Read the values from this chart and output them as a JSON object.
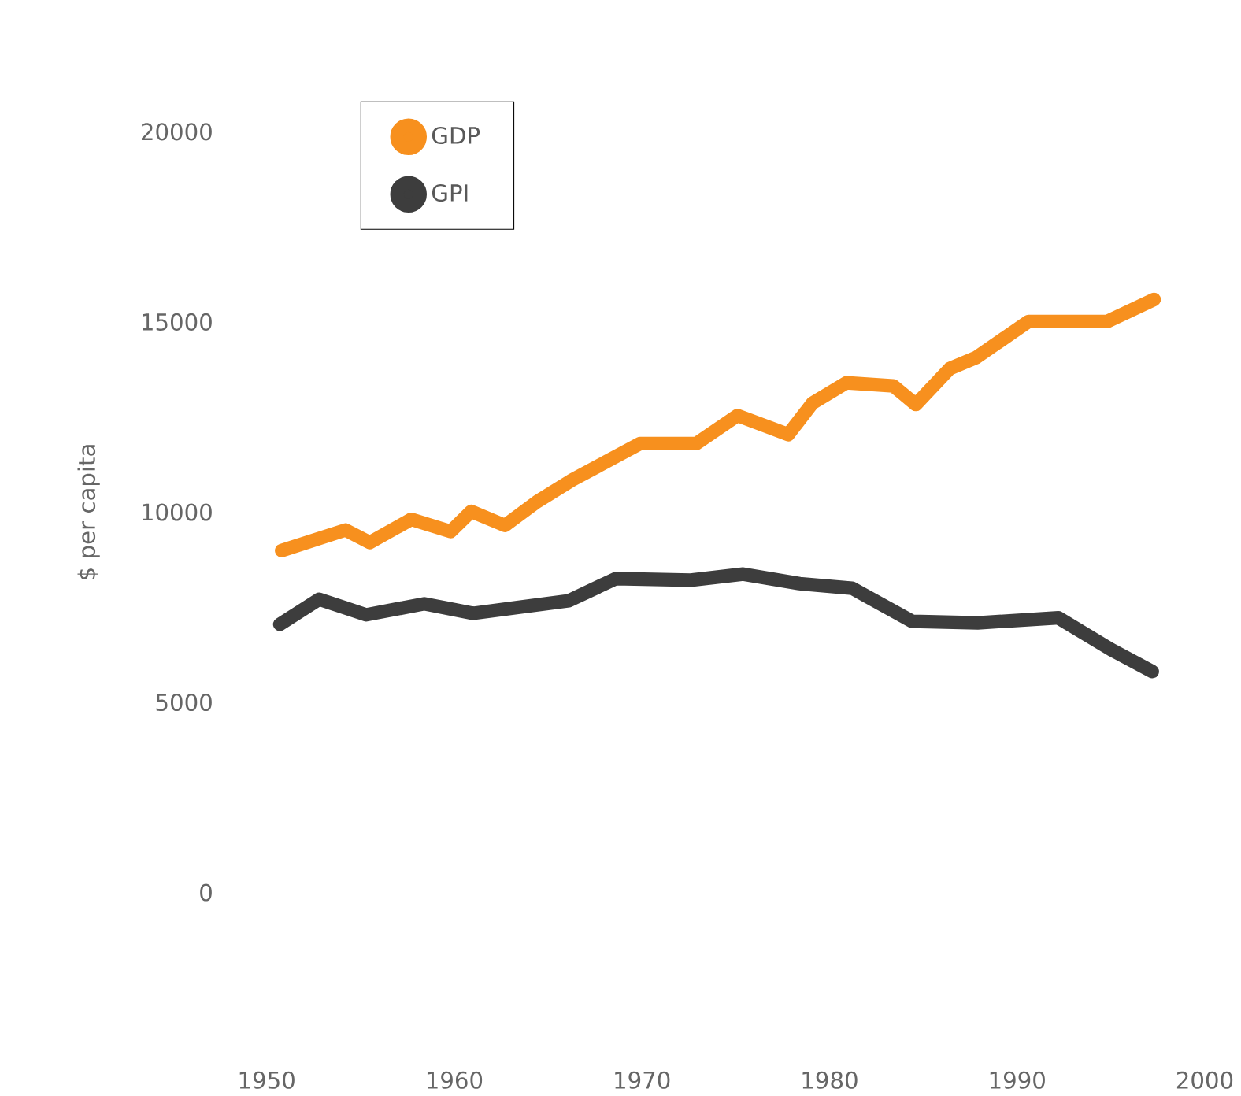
{
  "chart_data": {
    "type": "line",
    "ylabel": "$ per capita",
    "xlim": [
      1950,
      2000
    ],
    "xticks": [
      1950,
      1960,
      1970,
      1980,
      1990,
      2000
    ],
    "ylim": [
      0,
      20000
    ],
    "yticks": [
      0,
      5000,
      10000,
      15000,
      20000
    ],
    "legend": "top left",
    "marker": "none",
    "line_style": "solid",
    "grid": false,
    "series": [
      {
        "name": "GDP",
        "color": "#f7901e",
        "x": [
          1950.8,
          1954.2,
          1955.5,
          1957.7,
          1959.8,
          1960.9,
          1962.7,
          1964.4,
          1966.3,
          1969.9,
          1972.9,
          1975.1,
          1977.8,
          1979.1,
          1980.9,
          1983.4,
          1984.6,
          1986.4,
          1987.8,
          1990.6,
          1994.8,
          1997.3
        ],
        "values": [
          8990,
          9530,
          9200,
          9810,
          9490,
          10020,
          9650,
          10270,
          10850,
          11800,
          11800,
          12540,
          12040,
          12870,
          13400,
          13320,
          12830,
          13770,
          14060,
          15010,
          15010,
          15590
        ]
      },
      {
        "name": "GPI",
        "color": "#3d3d3d",
        "x": [
          1950.7,
          1952.8,
          1955.3,
          1958.4,
          1961.0,
          1966.1,
          1968.6,
          1972.6,
          1975.4,
          1978.4,
          1981.2,
          1984.4,
          1987.9,
          1992.2,
          1995.0,
          1997.2
        ],
        "values": [
          7050,
          7710,
          7300,
          7590,
          7340,
          7670,
          8250,
          8210,
          8370,
          8120,
          8000,
          7130,
          7090,
          7220,
          6390,
          5810
        ]
      }
    ]
  }
}
